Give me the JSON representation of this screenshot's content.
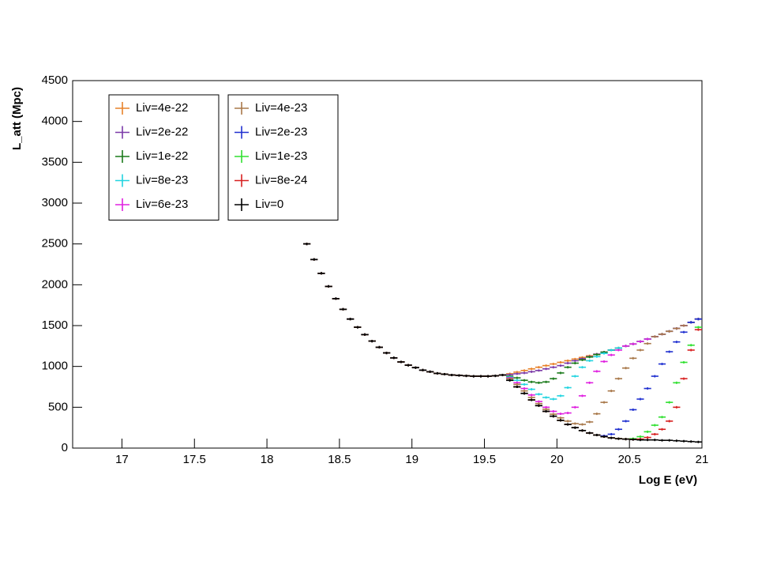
{
  "chart_data": {
    "type": "errorpoints",
    "x_label": "Log E (eV)",
    "y_label": "L_att (Mpc)",
    "xlim": [
      16.66,
      21
    ],
    "ylim": [
      0,
      4500
    ],
    "xticks": [
      17,
      17.5,
      18,
      18.5,
      19,
      19.5,
      20,
      20.5,
      21
    ],
    "yticks": [
      0,
      500,
      1000,
      1500,
      2000,
      2500,
      3000,
      3500,
      4000,
      4500
    ],
    "x": [
      18.275,
      18.325,
      18.375,
      18.425,
      18.475,
      18.525,
      18.575,
      18.625,
      18.675,
      18.725,
      18.775,
      18.825,
      18.875,
      18.925,
      18.975,
      19.025,
      19.075,
      19.125,
      19.175,
      19.225,
      19.275,
      19.325,
      19.375,
      19.425,
      19.475,
      19.525,
      19.575,
      19.625,
      19.675,
      19.725,
      19.775,
      19.825,
      19.875,
      19.925,
      19.975,
      20.025,
      20.075,
      20.125,
      20.175,
      20.225,
      20.275,
      20.325,
      20.375,
      20.425,
      20.475,
      20.525,
      20.575,
      20.625,
      20.675,
      20.725,
      20.775,
      20.825,
      20.875,
      20.925,
      20.975
    ],
    "series": [
      {
        "name": "Liv=4e-22",
        "color": "#e8822a",
        "values": [
          2500,
          2310,
          2140,
          1980,
          1830,
          1700,
          1580,
          1480,
          1390,
          1310,
          1235,
          1165,
          1105,
          1055,
          1015,
          985,
          955,
          935,
          915,
          905,
          895,
          890,
          885,
          880,
          880,
          880,
          885,
          895,
          910,
          930,
          950,
          970,
          990,
          1010,
          1030,
          1050,
          1070,
          1090,
          1110,
          1130,
          1150,
          1175,
          1200,
          1225,
          1250,
          1275,
          1305,
          1335,
          1365,
          1395,
          1430,
          1465,
          1500,
          1540,
          1580
        ]
      },
      {
        "name": "Liv=2e-22",
        "color": "#7b3aa8",
        "values": [
          2500,
          2310,
          2140,
          1980,
          1830,
          1700,
          1580,
          1480,
          1390,
          1310,
          1235,
          1165,
          1105,
          1055,
          1015,
          985,
          955,
          935,
          915,
          905,
          895,
          890,
          885,
          880,
          880,
          880,
          885,
          895,
          900,
          910,
          920,
          935,
          950,
          970,
          990,
          1010,
          1040,
          1070,
          1095,
          1120,
          1150,
          1175,
          1200,
          1225,
          1250,
          1275,
          1305,
          1335,
          1365,
          1395,
          1430,
          1465,
          1500,
          1540,
          1580
        ]
      },
      {
        "name": "Liv=1e-22",
        "color": "#1a7a1a",
        "values": [
          2500,
          2310,
          2140,
          1980,
          1830,
          1700,
          1580,
          1480,
          1390,
          1310,
          1235,
          1165,
          1105,
          1055,
          1015,
          985,
          955,
          935,
          915,
          905,
          895,
          890,
          885,
          880,
          880,
          880,
          885,
          895,
          880,
          860,
          830,
          810,
          800,
          810,
          850,
          920,
          990,
          1040,
          1080,
          1115,
          1145,
          1175,
          1200,
          1225,
          1250,
          1275,
          1305,
          1335,
          1365,
          1395,
          1430,
          1465,
          1500,
          1540,
          1580
        ]
      },
      {
        "name": "Liv=8e-23",
        "color": "#22d4e0",
        "values": [
          2500,
          2310,
          2140,
          1980,
          1830,
          1700,
          1580,
          1480,
          1390,
          1310,
          1235,
          1165,
          1105,
          1055,
          1015,
          985,
          955,
          935,
          915,
          905,
          895,
          890,
          885,
          880,
          880,
          880,
          885,
          895,
          870,
          830,
          780,
          720,
          660,
          620,
          600,
          640,
          740,
          880,
          990,
          1070,
          1120,
          1160,
          1200,
          1225,
          1250,
          1275,
          1305,
          1335,
          1365,
          1395,
          1430,
          1465,
          1500,
          1540,
          1580
        ]
      },
      {
        "name": "Liv=6e-23",
        "color": "#e020e0",
        "values": [
          2500,
          2310,
          2140,
          1980,
          1830,
          1700,
          1580,
          1480,
          1390,
          1310,
          1235,
          1165,
          1105,
          1055,
          1015,
          985,
          955,
          935,
          915,
          905,
          895,
          890,
          885,
          880,
          880,
          880,
          885,
          895,
          860,
          800,
          730,
          650,
          570,
          500,
          450,
          420,
          430,
          500,
          640,
          800,
          940,
          1060,
          1140,
          1200,
          1250,
          1275,
          1305,
          1335,
          1365,
          1395,
          1430,
          1465,
          1500,
          1540,
          1580
        ]
      },
      {
        "name": "Liv=4e-23",
        "color": "#a8784a",
        "values": [
          2500,
          2310,
          2140,
          1980,
          1830,
          1700,
          1580,
          1480,
          1390,
          1310,
          1235,
          1165,
          1105,
          1055,
          1015,
          985,
          955,
          935,
          915,
          905,
          895,
          890,
          885,
          880,
          880,
          880,
          885,
          895,
          850,
          780,
          700,
          620,
          545,
          475,
          415,
          370,
          330,
          300,
          290,
          320,
          420,
          560,
          700,
          850,
          980,
          1100,
          1200,
          1280,
          1365,
          1395,
          1430,
          1465,
          1500,
          1540,
          1580
        ]
      },
      {
        "name": "Liv=2e-23",
        "color": "#2030d0",
        "values": [
          2500,
          2310,
          2140,
          1980,
          1830,
          1700,
          1580,
          1480,
          1390,
          1310,
          1235,
          1165,
          1105,
          1055,
          1015,
          985,
          955,
          935,
          915,
          905,
          895,
          890,
          885,
          880,
          880,
          880,
          885,
          895,
          830,
          750,
          670,
          590,
          520,
          450,
          390,
          340,
          290,
          250,
          215,
          185,
          160,
          150,
          170,
          230,
          330,
          470,
          600,
          730,
          880,
          1030,
          1180,
          1300,
          1420,
          1540,
          1580
        ]
      },
      {
        "name": "Liv=1e-23",
        "color": "#30e030",
        "values": [
          2500,
          2310,
          2140,
          1980,
          1830,
          1700,
          1580,
          1480,
          1390,
          1310,
          1235,
          1165,
          1105,
          1055,
          1015,
          985,
          955,
          935,
          915,
          905,
          895,
          890,
          885,
          880,
          880,
          880,
          885,
          895,
          830,
          750,
          670,
          590,
          520,
          450,
          390,
          340,
          290,
          250,
          215,
          185,
          160,
          140,
          125,
          115,
          110,
          115,
          140,
          200,
          280,
          380,
          560,
          800,
          1050,
          1260,
          1480
        ]
      },
      {
        "name": "Liv=8e-24",
        "color": "#d82020",
        "values": [
          2500,
          2310,
          2140,
          1980,
          1830,
          1700,
          1580,
          1480,
          1390,
          1310,
          1235,
          1165,
          1105,
          1055,
          1015,
          985,
          955,
          935,
          915,
          905,
          895,
          890,
          885,
          880,
          880,
          880,
          885,
          895,
          830,
          750,
          670,
          590,
          520,
          450,
          390,
          340,
          290,
          250,
          215,
          185,
          160,
          140,
          125,
          115,
          110,
          105,
          110,
          130,
          170,
          230,
          330,
          500,
          850,
          1200,
          1450
        ]
      },
      {
        "name": "Liv=0",
        "color": "#000000",
        "values": [
          2500,
          2310,
          2140,
          1980,
          1830,
          1700,
          1580,
          1480,
          1390,
          1310,
          1235,
          1165,
          1105,
          1055,
          1015,
          985,
          955,
          935,
          915,
          905,
          895,
          890,
          885,
          880,
          880,
          880,
          885,
          895,
          830,
          750,
          670,
          590,
          520,
          450,
          390,
          340,
          290,
          250,
          215,
          185,
          160,
          140,
          125,
          115,
          110,
          105,
          100,
          100,
          100,
          95,
          95,
          90,
          85,
          80,
          75
        ]
      }
    ]
  }
}
